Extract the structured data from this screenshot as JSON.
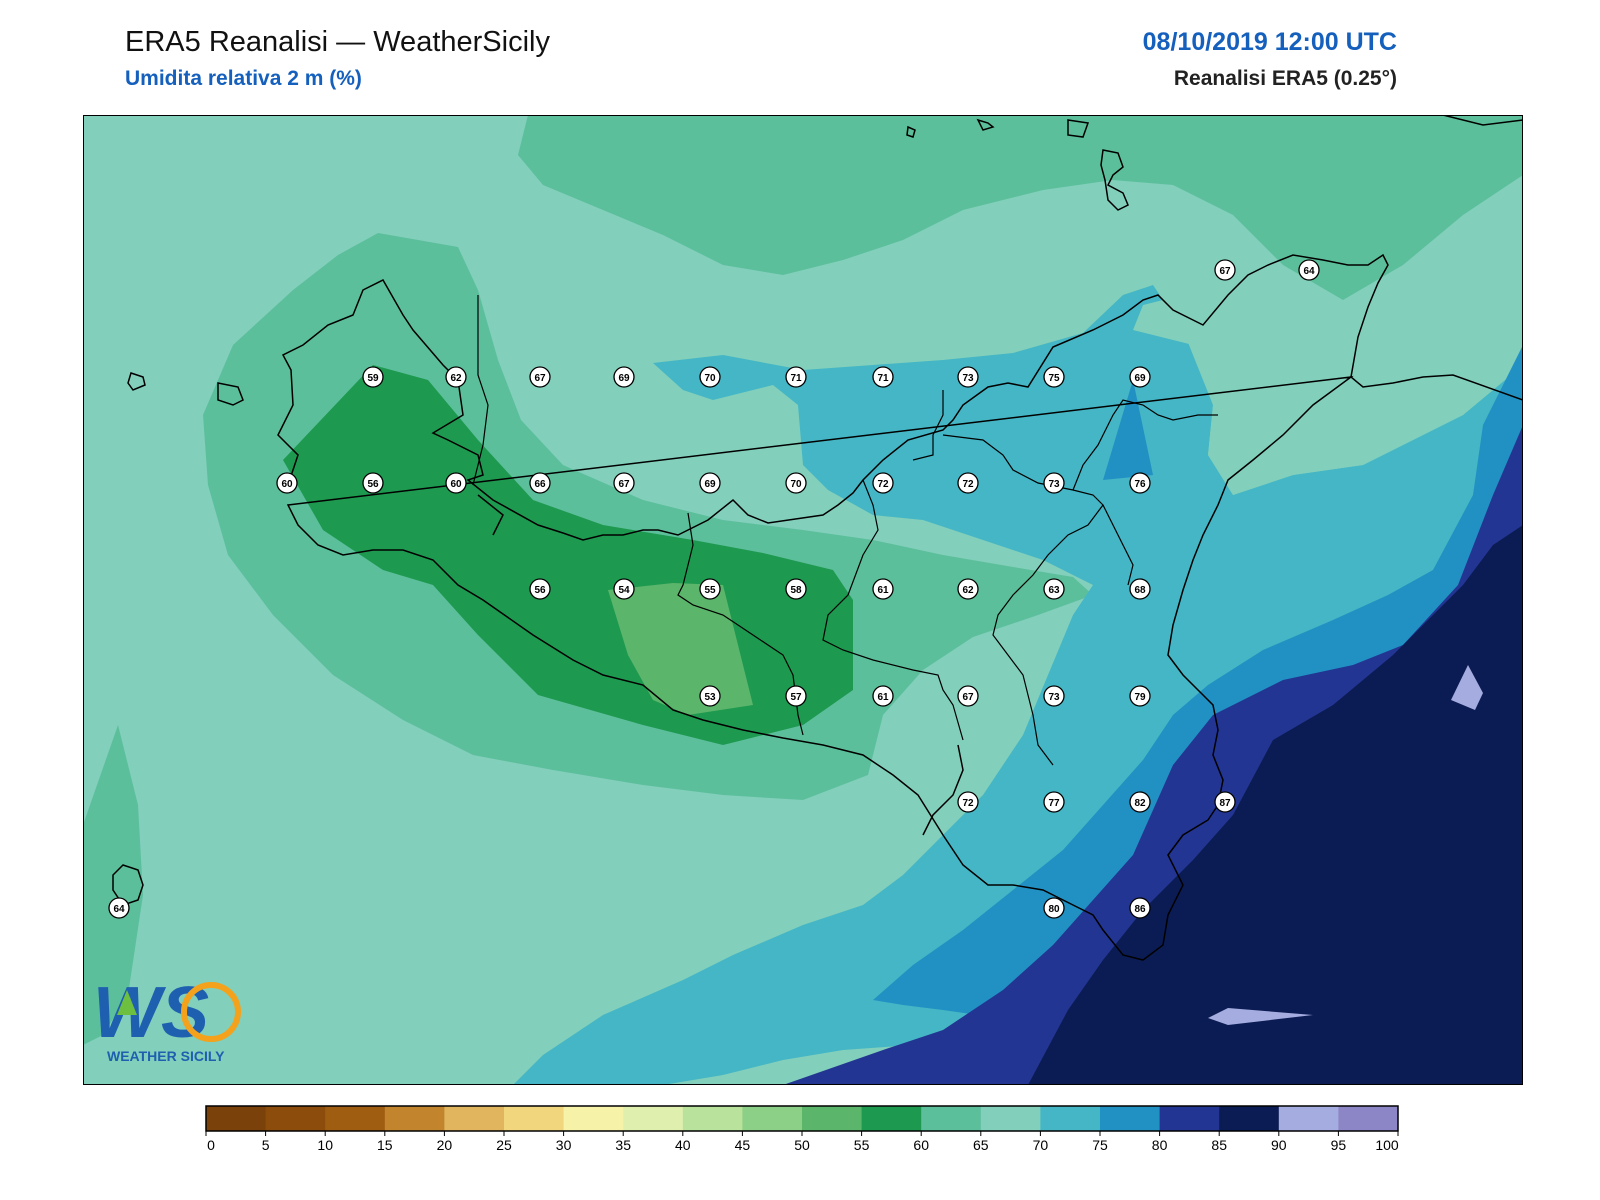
{
  "header": {
    "title": "ERA5 Reanalisi — WeatherSicily",
    "subtitle": "Umidita relativa 2 m (%)",
    "datetime": "08/10/2019 12:00 UTC",
    "source": "Reanalisi ERA5 (0.25°)"
  },
  "logo": {
    "letters": "WS",
    "text": "WEATHER SICILY",
    "colors": {
      "blue": "#1e5fb0",
      "orange": "#f4a21c",
      "green": "#6cbf3f"
    }
  },
  "colorbar": {
    "ticks": [
      "0",
      "5",
      "10",
      "15",
      "20",
      "25",
      "30",
      "35",
      "40",
      "45",
      "50",
      "55",
      "60",
      "65",
      "70",
      "75",
      "80",
      "85",
      "90",
      "95",
      "100"
    ],
    "colors": [
      "#7a420a",
      "#8c4d0c",
      "#9f5d12",
      "#c2852e",
      "#e0b55d",
      "#f2d67e",
      "#f6f3a8",
      "#dff0ae",
      "#b9e29c",
      "#8ccf86",
      "#5bb56a",
      "#1e9950",
      "#5cbf9b",
      "#82cfbb",
      "#44b6c5",
      "#2191c3",
      "#233592",
      "#0b1c54",
      "#a5acdf",
      "#8c86c6"
    ]
  },
  "stations": [
    {
      "value": "59"
    },
    {
      "value": "62"
    },
    {
      "value": "67"
    },
    {
      "value": "69"
    },
    {
      "value": "70"
    },
    {
      "value": "71"
    },
    {
      "value": "71"
    },
    {
      "value": "73"
    },
    {
      "value": "75"
    },
    {
      "value": "69"
    },
    {
      "value": "60"
    },
    {
      "value": "56"
    },
    {
      "value": "60"
    },
    {
      "value": "66"
    },
    {
      "value": "67"
    },
    {
      "value": "69"
    },
    {
      "value": "70"
    },
    {
      "value": "72"
    },
    {
      "value": "72"
    },
    {
      "value": "73"
    },
    {
      "value": "76"
    },
    {
      "value": "56"
    },
    {
      "value": "54"
    },
    {
      "value": "55"
    },
    {
      "value": "58"
    },
    {
      "value": "61"
    },
    {
      "value": "62"
    },
    {
      "value": "63"
    },
    {
      "value": "68"
    },
    {
      "value": "53"
    },
    {
      "value": "57"
    },
    {
      "value": "61"
    },
    {
      "value": "67"
    },
    {
      "value": "73"
    },
    {
      "value": "79"
    },
    {
      "value": "72"
    },
    {
      "value": "77"
    },
    {
      "value": "82"
    },
    {
      "value": "87"
    },
    {
      "value": "80"
    },
    {
      "value": "86"
    },
    {
      "value": "67"
    },
    {
      "value": "64"
    },
    {
      "value": "64"
    }
  ]
}
